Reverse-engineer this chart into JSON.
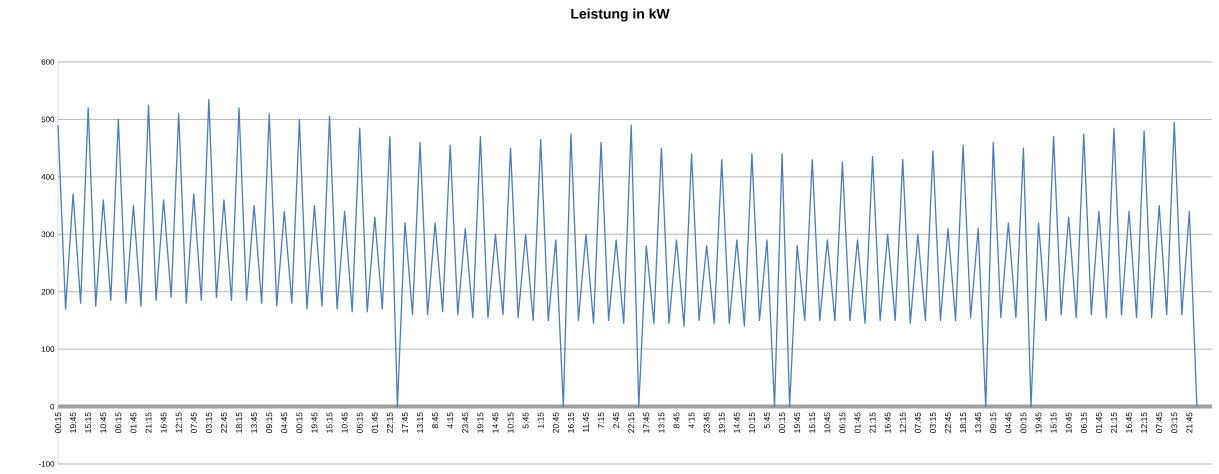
{
  "chart_data": {
    "type": "line",
    "title": "Leistung in kW",
    "categories": [
      "00:15",
      null,
      "19:45",
      null,
      "15:15",
      null,
      "10:45",
      null,
      "06:15",
      null,
      "01:45",
      null,
      "21:15",
      null,
      "16:45",
      null,
      "12:15",
      null,
      "07:45",
      null,
      "03:15",
      null,
      "22:45",
      null,
      "18:15",
      null,
      "13:45",
      null,
      "09:15",
      null,
      "04:45",
      null,
      "00:15",
      null,
      "19:45",
      null,
      "15:15",
      null,
      "10:45",
      null,
      "06:15",
      null,
      "01:45",
      null,
      "22:15",
      null,
      "17:45",
      null,
      "13:15",
      null,
      "8:45",
      null,
      "4:15",
      null,
      "23:45",
      null,
      "19:15",
      null,
      "14:45",
      null,
      "10:15",
      null,
      "5:45",
      null,
      "1:15",
      null,
      "20:45",
      null,
      "16:15",
      null,
      "11:45",
      null,
      "7:15",
      null,
      "2:45",
      null,
      "22:15",
      null,
      "17:45",
      null,
      "13:15",
      null,
      "8:45",
      null,
      "4:15",
      null,
      "23:45",
      null,
      "19:15",
      null,
      "14:45",
      null,
      "10:15",
      null,
      "5:45",
      null,
      "00:15",
      null,
      "19:45",
      null,
      "15:15",
      null,
      "10:45",
      null,
      "06:15",
      null,
      "01:45",
      null,
      "21:15",
      null,
      "16:45",
      null,
      "12:15",
      null,
      "07:45",
      null,
      "03:15",
      null,
      "22:45",
      null,
      "18:15",
      null,
      "13:45",
      null,
      "09:15",
      null,
      "04:45",
      null,
      "00:15",
      null,
      "19:45",
      null,
      "15:15",
      null,
      "10:45",
      null,
      "06:15",
      null,
      "01:45",
      null,
      "21:15",
      null,
      "16:45",
      null,
      "12:15",
      null,
      "07:45",
      null,
      "03:15",
      null,
      "21:45",
      null
    ],
    "ylim": [
      -100,
      600
    ],
    "yticks": [
      -100,
      0,
      100,
      200,
      300,
      400,
      500,
      600
    ],
    "grid": "y",
    "series": [
      {
        "color": "#4a7ebb",
        "values": [
          490,
          170,
          370,
          180,
          520,
          175,
          360,
          185,
          500,
          180,
          350,
          175,
          525,
          185,
          360,
          190,
          510,
          180,
          370,
          185,
          535,
          190,
          360,
          185,
          520,
          185,
          350,
          180,
          510,
          175,
          340,
          180,
          500,
          170,
          350,
          175,
          505,
          170,
          340,
          165,
          485,
          165,
          330,
          170,
          470,
          0,
          320,
          160,
          460,
          160,
          320,
          165,
          455,
          160,
          310,
          155,
          470,
          155,
          300,
          160,
          450,
          155,
          300,
          150,
          465,
          150,
          290,
          0,
          475,
          150,
          300,
          145,
          460,
          150,
          290,
          145,
          490,
          0,
          280,
          145,
          450,
          145,
          290,
          140,
          440,
          150,
          280,
          145,
          430,
          145,
          290,
          140,
          440,
          150,
          290,
          0,
          440,
          0,
          280,
          150,
          430,
          150,
          290,
          150,
          425,
          150,
          290,
          145,
          435,
          150,
          300,
          150,
          430,
          145,
          300,
          150,
          445,
          150,
          310,
          150,
          455,
          155,
          310,
          0,
          460,
          155,
          320,
          155,
          450,
          0,
          320,
          150,
          470,
          160,
          330,
          155,
          475,
          160,
          340,
          155,
          485,
          160,
          340,
          155,
          480,
          155,
          350,
          160,
          495,
          160,
          340,
          0
        ]
      }
    ]
  }
}
